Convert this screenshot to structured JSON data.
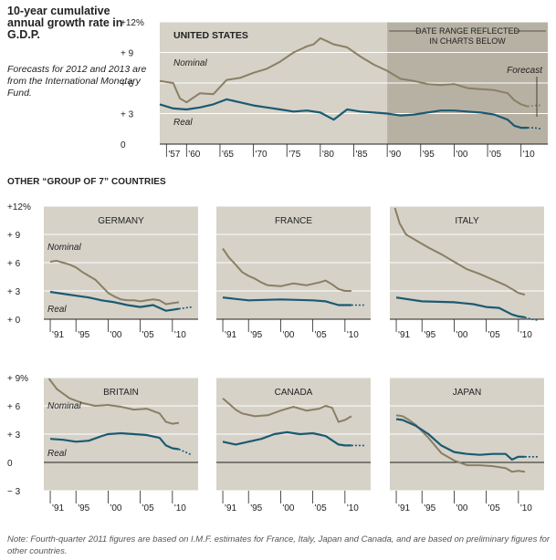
{
  "title": "10-year cumulative annual growth rate in G.D.P.",
  "subtitle": "Forecasts for 2012 and 2013 are from the International Monetary Fund.",
  "section_title": "OTHER “GROUP OF 7” COUNTRIES",
  "note": "Note: Fourth-quarter 2011 figures are based on I.M.F. estimates for France, Italy, Japan and Canada, and are based on preliminary figures for other countries.",
  "colors": {
    "panel": "#d6d2c8",
    "shade": "#b7b1a4",
    "nominal": "#8a7f64",
    "real": "#1b5a72",
    "grid": "#ffffff",
    "zero": "#222222"
  },
  "chart_data": [
    {
      "type": "line",
      "panel_title": "UNITED STATES",
      "x_ticks": [
        "'57",
        "'60",
        "'65",
        "'70",
        "'75",
        "'80",
        "'85",
        "'90",
        "'95",
        "'00",
        "'05",
        "'10"
      ],
      "tick_years": [
        1957,
        1960,
        1965,
        1970,
        1975,
        1980,
        1985,
        1990,
        1995,
        2000,
        2005,
        2010
      ],
      "y_ticks": [
        "+12%",
        "+ 9",
        "+ 6",
        "+ 3",
        "0"
      ],
      "y_tick_values": [
        12,
        9,
        6,
        3,
        0
      ],
      "xlim": [
        1956,
        2014
      ],
      "ylim": [
        0,
        12
      ],
      "shaded_range": [
        1990,
        2014
      ],
      "shaded_label": "DATE RANGE REFLECTED IN CHARTS BELOW",
      "forecast_label": "Forecast",
      "forecast_start": 2011.9,
      "series": [
        {
          "name": "Nominal",
          "x": [
            1956,
            1958,
            1959,
            1960,
            1962,
            1964,
            1966,
            1968,
            1970,
            1972,
            1974,
            1976,
            1978,
            1979,
            1980,
            1981,
            1982,
            1984,
            1986,
            1988,
            1990,
            1992,
            1994,
            1996,
            1998,
            2000,
            2002,
            2004,
            2006,
            2008,
            2009,
            2010,
            2011,
            2012,
            2013
          ],
          "y": [
            6.2,
            6.0,
            4.5,
            4.1,
            5.0,
            4.9,
            6.3,
            6.5,
            7.0,
            7.4,
            8.1,
            9.0,
            9.6,
            9.8,
            10.4,
            10.1,
            9.8,
            9.5,
            8.6,
            7.8,
            7.2,
            6.4,
            6.2,
            5.9,
            5.8,
            5.9,
            5.5,
            5.4,
            5.3,
            5.0,
            4.3,
            3.9,
            3.7,
            3.8,
            3.8
          ]
        },
        {
          "name": "Real",
          "x": [
            1956,
            1958,
            1960,
            1962,
            1964,
            1966,
            1968,
            1970,
            1972,
            1974,
            1976,
            1978,
            1980,
            1982,
            1984,
            1986,
            1988,
            1990,
            1992,
            1994,
            1996,
            1998,
            2000,
            2002,
            2004,
            2006,
            2008,
            2009,
            2010,
            2011,
            2012,
            2013
          ],
          "y": [
            3.9,
            3.5,
            3.4,
            3.6,
            3.9,
            4.4,
            4.1,
            3.8,
            3.6,
            3.4,
            3.2,
            3.3,
            3.1,
            2.4,
            3.4,
            3.2,
            3.1,
            3.0,
            2.8,
            2.9,
            3.1,
            3.3,
            3.3,
            3.2,
            3.1,
            2.9,
            2.4,
            1.8,
            1.6,
            1.6,
            1.6,
            1.5
          ]
        }
      ]
    },
    {
      "type": "line",
      "panel_title": "GERMANY",
      "x_ticks": [
        "'91",
        "'95",
        "'00",
        "'05",
        "'10"
      ],
      "tick_years": [
        1991,
        1995,
        2000,
        2005,
        2010
      ],
      "y_ticks": [
        "+12%",
        "+ 9",
        "+ 6",
        "+ 3",
        "+ 0"
      ],
      "y_tick_values": [
        12,
        9,
        6,
        3,
        0
      ],
      "xlim": [
        1990,
        2014
      ],
      "ylim": [
        0,
        12
      ],
      "forecast_start": 2011.9,
      "series": [
        {
          "name": "Nominal",
          "x": [
            1991,
            1992,
            1993,
            1994,
            1995,
            1996,
            1997,
            1998,
            1999,
            2000,
            2001,
            2002,
            2003,
            2004,
            2005,
            2006,
            2007,
            2008,
            2009,
            2010,
            2011
          ],
          "y": [
            6.1,
            6.2,
            6.0,
            5.8,
            5.5,
            5.0,
            4.6,
            4.2,
            3.5,
            2.8,
            2.4,
            2.1,
            2.0,
            2.0,
            1.9,
            2.0,
            2.1,
            2.0,
            1.6,
            1.7,
            1.8
          ]
        },
        {
          "name": "Real",
          "x": [
            1991,
            1993,
            1995,
            1997,
            1999,
            2001,
            2003,
            2005,
            2007,
            2009,
            2010,
            2011,
            2012,
            2013
          ],
          "y": [
            2.9,
            2.7,
            2.5,
            2.3,
            2.0,
            1.8,
            1.5,
            1.3,
            1.5,
            0.9,
            1.0,
            1.1,
            1.2,
            1.3
          ]
        }
      ]
    },
    {
      "type": "line",
      "panel_title": "FRANCE",
      "x_ticks": [
        "'91",
        "'95",
        "'00",
        "'05",
        "'10"
      ],
      "tick_years": [
        1991,
        1995,
        2000,
        2005,
        2010
      ],
      "y_ticks": [
        "+12%",
        "+ 9",
        "+ 6",
        "+ 3",
        "+ 0"
      ],
      "y_tick_values": [
        12,
        9,
        6,
        3,
        0
      ],
      "xlim": [
        1990,
        2014
      ],
      "ylim": [
        0,
        12
      ],
      "forecast_start": 2011.9,
      "series": [
        {
          "name": "Nominal",
          "x": [
            1991,
            1992,
            1993,
            1994,
            1995,
            1996,
            1997,
            1998,
            2000,
            2002,
            2004,
            2006,
            2007,
            2008,
            2009,
            2010,
            2011
          ],
          "y": [
            7.5,
            6.5,
            5.8,
            5.0,
            4.6,
            4.3,
            3.9,
            3.6,
            3.5,
            3.8,
            3.6,
            3.9,
            4.1,
            3.7,
            3.2,
            3.0,
            3.0
          ]
        },
        {
          "name": "Real",
          "x": [
            1991,
            1995,
            2000,
            2005,
            2007,
            2009,
            2010,
            2011,
            2012,
            2013
          ],
          "y": [
            2.3,
            2.0,
            2.1,
            2.0,
            1.9,
            1.5,
            1.5,
            1.5,
            1.5,
            1.5
          ]
        }
      ]
    },
    {
      "type": "line",
      "panel_title": "ITALY",
      "x_ticks": [
        "'91",
        "'95",
        "'00",
        "'05",
        "'10"
      ],
      "tick_years": [
        1991,
        1995,
        2000,
        2005,
        2010
      ],
      "y_ticks": [
        "+12%",
        "+ 9",
        "+ 6",
        "+ 3",
        "+ 0"
      ],
      "y_tick_values": [
        12,
        9,
        6,
        3,
        0
      ],
      "xlim": [
        1990,
        2014
      ],
      "ylim": [
        0,
        12
      ],
      "forecast_start": 2011.9,
      "series": [
        {
          "name": "Nominal",
          "x": [
            1990.8,
            1991.5,
            1992.5,
            1994,
            1996,
            1998,
            2000,
            2002,
            2004,
            2006,
            2008,
            2010,
            2011
          ],
          "y": [
            11.8,
            10.2,
            9.0,
            8.4,
            7.6,
            6.9,
            6.1,
            5.3,
            4.8,
            4.2,
            3.6,
            2.8,
            2.6
          ]
        },
        {
          "name": "Real",
          "x": [
            1991,
            1995,
            2000,
            2003,
            2005,
            2007,
            2009,
            2010,
            2011,
            2012,
            2013
          ],
          "y": [
            2.3,
            1.9,
            1.8,
            1.6,
            1.3,
            1.2,
            0.5,
            0.3,
            0.2,
            0.0,
            -0.1
          ]
        }
      ]
    },
    {
      "type": "line",
      "panel_title": "BRITAIN",
      "x_ticks": [
        "'91",
        "'95",
        "'00",
        "'05",
        "'10"
      ],
      "tick_years": [
        1991,
        1995,
        2000,
        2005,
        2010
      ],
      "y_ticks": [
        "+ 9%",
        "+ 6",
        "+ 3",
        "0",
        "− 3"
      ],
      "y_tick_values": [
        9,
        6,
        3,
        0,
        -3
      ],
      "xlim": [
        1990,
        2014
      ],
      "ylim": [
        -3,
        9
      ],
      "forecast_start": 2011.9,
      "series": [
        {
          "name": "Nominal",
          "x": [
            1990.8,
            1992,
            1994,
            1996,
            1998,
            2000,
            2002,
            2004,
            2006,
            2008,
            2009,
            2010,
            2011
          ],
          "y": [
            8.9,
            7.8,
            6.8,
            6.3,
            6.0,
            6.1,
            5.9,
            5.6,
            5.7,
            5.2,
            4.3,
            4.1,
            4.2
          ]
        },
        {
          "name": "Real",
          "x": [
            1991,
            1993,
            1995,
            1997,
            1999,
            2000,
            2002,
            2004,
            2006,
            2008,
            2009,
            2010,
            2011,
            2012,
            2013
          ],
          "y": [
            2.5,
            2.4,
            2.2,
            2.3,
            2.8,
            3.0,
            3.1,
            3.0,
            2.9,
            2.6,
            1.8,
            1.5,
            1.4,
            1.1,
            0.8
          ]
        }
      ]
    },
    {
      "type": "line",
      "panel_title": "CANADA",
      "x_ticks": [
        "'91",
        "'95",
        "'00",
        "'05",
        "'10"
      ],
      "tick_years": [
        1991,
        1995,
        2000,
        2005,
        2010
      ],
      "y_ticks": [
        "+ 9%",
        "+ 6",
        "+ 3",
        "0",
        "− 3"
      ],
      "y_tick_values": [
        9,
        6,
        3,
        0,
        -3
      ],
      "xlim": [
        1990,
        2014
      ],
      "ylim": [
        -3,
        9
      ],
      "forecast_start": 2011.9,
      "series": [
        {
          "name": "Nominal",
          "x": [
            1991,
            1992,
            1993,
            1994,
            1996,
            1998,
            2000,
            2002,
            2004,
            2006,
            2007,
            2008,
            2009,
            2010,
            2011
          ],
          "y": [
            6.8,
            6.2,
            5.6,
            5.2,
            4.9,
            5.0,
            5.5,
            5.9,
            5.5,
            5.7,
            6.0,
            5.8,
            4.3,
            4.5,
            4.9
          ]
        },
        {
          "name": "Real",
          "x": [
            1991,
            1993,
            1995,
            1997,
            1999,
            2001,
            2003,
            2005,
            2007,
            2009,
            2010,
            2011,
            2012,
            2013
          ],
          "y": [
            2.2,
            1.9,
            2.2,
            2.5,
            3.0,
            3.2,
            3.0,
            3.1,
            2.8,
            1.9,
            1.8,
            1.8,
            1.8,
            1.8
          ]
        }
      ]
    },
    {
      "type": "line",
      "panel_title": "JAPAN",
      "x_ticks": [
        "'91",
        "'95",
        "'00",
        "'05",
        "'10"
      ],
      "tick_years": [
        1991,
        1995,
        2000,
        2005,
        2010
      ],
      "y_ticks": [
        "+ 9%",
        "+ 6",
        "+ 3",
        "0",
        "− 3"
      ],
      "y_tick_values": [
        9,
        6,
        3,
        0,
        -3
      ],
      "xlim": [
        1990,
        2014
      ],
      "ylim": [
        -3,
        9
      ],
      "forecast_start": 2011.9,
      "series": [
        {
          "name": "Nominal",
          "x": [
            1991,
            1992,
            1993,
            1994,
            1996,
            1998,
            2000,
            2002,
            2004,
            2006,
            2008,
            2009,
            2010,
            2011
          ],
          "y": [
            5.0,
            4.9,
            4.5,
            4.0,
            2.6,
            1.0,
            0.2,
            -0.3,
            -0.3,
            -0.4,
            -0.6,
            -1.0,
            -0.9,
            -1.0
          ]
        },
        {
          "name": "Real",
          "x": [
            1991,
            1992,
            1994,
            1996,
            1998,
            2000,
            2002,
            2004,
            2006,
            2008,
            2009,
            2010,
            2011,
            2012,
            2013
          ],
          "y": [
            4.6,
            4.5,
            3.9,
            3.0,
            1.8,
            1.1,
            0.9,
            0.8,
            0.9,
            0.9,
            0.3,
            0.6,
            0.6,
            0.6,
            0.6
          ]
        }
      ]
    }
  ]
}
